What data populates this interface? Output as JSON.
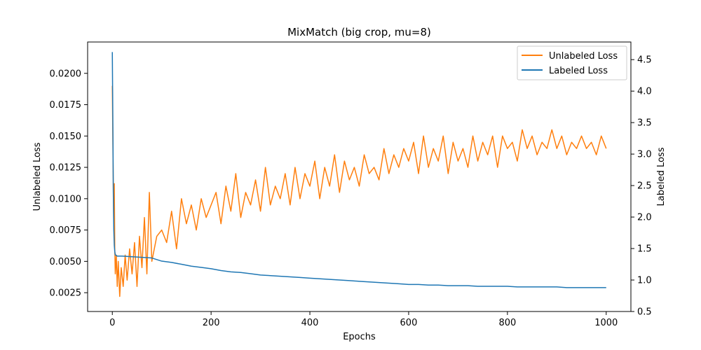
{
  "chart_data": {
    "type": "line",
    "title": "MixMatch (big crop, mu=8)",
    "xlabel": "Epochs",
    "ylabel_left": "Unlabeled Loss",
    "ylabel_right": "Labeled Loss",
    "xlim": [
      -50,
      1050
    ],
    "ylim_left": [
      0.001,
      0.0225
    ],
    "ylim_right": [
      0.5,
      4.78
    ],
    "xticks": [
      0,
      200,
      400,
      600,
      800,
      1000
    ],
    "yticks_left": [
      0.0025,
      0.005,
      0.0075,
      0.01,
      0.0125,
      0.015,
      0.0175,
      0.02
    ],
    "ytick_labels_left": [
      "0.0025",
      "0.0050",
      "0.0075",
      "0.0100",
      "0.0125",
      "0.0150",
      "0.0175",
      "0.0200"
    ],
    "yticks_right": [
      0.5,
      1.0,
      1.5,
      2.0,
      2.5,
      3.0,
      3.5,
      4.0,
      4.5
    ],
    "ytick_labels_right": [
      "0.5",
      "1.0",
      "1.5",
      "2.0",
      "2.5",
      "3.0",
      "3.5",
      "4.0",
      "4.5"
    ],
    "grid": false,
    "legend_position": "top-right",
    "series": [
      {
        "name": "Unlabeled Loss",
        "axis": "left",
        "color": "#ff7f0e",
        "points": [
          [
            0,
            0.019
          ],
          [
            1,
            0.015
          ],
          [
            2,
            0.011
          ],
          [
            3,
            0.008
          ],
          [
            4,
            0.0112
          ],
          [
            5,
            0.006
          ],
          [
            6,
            0.004
          ],
          [
            8,
            0.0055
          ],
          [
            10,
            0.003
          ],
          [
            12,
            0.005
          ],
          [
            15,
            0.0022
          ],
          [
            18,
            0.0045
          ],
          [
            22,
            0.003
          ],
          [
            26,
            0.0055
          ],
          [
            30,
            0.0035
          ],
          [
            35,
            0.006
          ],
          [
            40,
            0.004
          ],
          [
            45,
            0.0065
          ],
          [
            50,
            0.003
          ],
          [
            55,
            0.007
          ],
          [
            60,
            0.0045
          ],
          [
            65,
            0.0085
          ],
          [
            70,
            0.004
          ],
          [
            75,
            0.0105
          ],
          [
            80,
            0.005
          ],
          [
            90,
            0.007
          ],
          [
            100,
            0.0075
          ],
          [
            110,
            0.0065
          ],
          [
            120,
            0.009
          ],
          [
            130,
            0.006
          ],
          [
            140,
            0.01
          ],
          [
            150,
            0.008
          ],
          [
            160,
            0.0095
          ],
          [
            170,
            0.0075
          ],
          [
            180,
            0.01
          ],
          [
            190,
            0.0085
          ],
          [
            200,
            0.0095
          ],
          [
            210,
            0.0105
          ],
          [
            220,
            0.008
          ],
          [
            230,
            0.011
          ],
          [
            240,
            0.009
          ],
          [
            250,
            0.012
          ],
          [
            260,
            0.0085
          ],
          [
            270,
            0.0105
          ],
          [
            280,
            0.0095
          ],
          [
            290,
            0.0115
          ],
          [
            300,
            0.009
          ],
          [
            310,
            0.0125
          ],
          [
            320,
            0.0095
          ],
          [
            330,
            0.011
          ],
          [
            340,
            0.01
          ],
          [
            350,
            0.012
          ],
          [
            360,
            0.0095
          ],
          [
            370,
            0.0125
          ],
          [
            380,
            0.01
          ],
          [
            390,
            0.012
          ],
          [
            400,
            0.011
          ],
          [
            410,
            0.013
          ],
          [
            420,
            0.01
          ],
          [
            430,
            0.0125
          ],
          [
            440,
            0.011
          ],
          [
            450,
            0.0135
          ],
          [
            460,
            0.0105
          ],
          [
            470,
            0.013
          ],
          [
            480,
            0.0115
          ],
          [
            490,
            0.0125
          ],
          [
            500,
            0.011
          ],
          [
            510,
            0.0135
          ],
          [
            520,
            0.012
          ],
          [
            530,
            0.0125
          ],
          [
            540,
            0.0115
          ],
          [
            550,
            0.014
          ],
          [
            560,
            0.012
          ],
          [
            570,
            0.0135
          ],
          [
            580,
            0.0125
          ],
          [
            590,
            0.014
          ],
          [
            600,
            0.013
          ],
          [
            610,
            0.0145
          ],
          [
            620,
            0.012
          ],
          [
            630,
            0.015
          ],
          [
            640,
            0.0125
          ],
          [
            650,
            0.014
          ],
          [
            660,
            0.013
          ],
          [
            670,
            0.015
          ],
          [
            680,
            0.012
          ],
          [
            690,
            0.0145
          ],
          [
            700,
            0.013
          ],
          [
            710,
            0.014
          ],
          [
            720,
            0.0125
          ],
          [
            730,
            0.015
          ],
          [
            740,
            0.013
          ],
          [
            750,
            0.0145
          ],
          [
            760,
            0.0135
          ],
          [
            770,
            0.015
          ],
          [
            780,
            0.0125
          ],
          [
            790,
            0.015
          ],
          [
            800,
            0.014
          ],
          [
            810,
            0.0145
          ],
          [
            820,
            0.013
          ],
          [
            830,
            0.0155
          ],
          [
            840,
            0.014
          ],
          [
            850,
            0.015
          ],
          [
            860,
            0.0135
          ],
          [
            870,
            0.0145
          ],
          [
            880,
            0.014
          ],
          [
            890,
            0.0155
          ],
          [
            900,
            0.014
          ],
          [
            910,
            0.015
          ],
          [
            920,
            0.0135
          ],
          [
            930,
            0.0145
          ],
          [
            940,
            0.014
          ],
          [
            950,
            0.015
          ],
          [
            960,
            0.014
          ],
          [
            970,
            0.0145
          ],
          [
            980,
            0.0135
          ],
          [
            990,
            0.015
          ],
          [
            1000,
            0.014
          ]
        ]
      },
      {
        "name": "Labeled Loss",
        "axis": "right",
        "color": "#1f77b4",
        "points": [
          [
            0,
            4.62
          ],
          [
            1,
            3.6
          ],
          [
            2,
            2.4
          ],
          [
            3,
            1.8
          ],
          [
            4,
            1.55
          ],
          [
            5,
            1.45
          ],
          [
            6,
            1.4
          ],
          [
            10,
            1.38
          ],
          [
            20,
            1.38
          ],
          [
            40,
            1.37
          ],
          [
            60,
            1.36
          ],
          [
            80,
            1.35
          ],
          [
            100,
            1.3
          ],
          [
            120,
            1.28
          ],
          [
            140,
            1.25
          ],
          [
            160,
            1.22
          ],
          [
            180,
            1.2
          ],
          [
            200,
            1.18
          ],
          [
            220,
            1.15
          ],
          [
            240,
            1.13
          ],
          [
            260,
            1.12
          ],
          [
            280,
            1.1
          ],
          [
            300,
            1.08
          ],
          [
            320,
            1.07
          ],
          [
            340,
            1.06
          ],
          [
            360,
            1.05
          ],
          [
            380,
            1.04
          ],
          [
            400,
            1.03
          ],
          [
            420,
            1.02
          ],
          [
            440,
            1.01
          ],
          [
            460,
            1.0
          ],
          [
            480,
            0.99
          ],
          [
            500,
            0.98
          ],
          [
            520,
            0.97
          ],
          [
            540,
            0.96
          ],
          [
            560,
            0.95
          ],
          [
            580,
            0.94
          ],
          [
            600,
            0.93
          ],
          [
            620,
            0.93
          ],
          [
            640,
            0.92
          ],
          [
            660,
            0.92
          ],
          [
            680,
            0.91
          ],
          [
            700,
            0.91
          ],
          [
            720,
            0.91
          ],
          [
            740,
            0.9
          ],
          [
            760,
            0.9
          ],
          [
            780,
            0.9
          ],
          [
            800,
            0.9
          ],
          [
            820,
            0.89
          ],
          [
            840,
            0.89
          ],
          [
            860,
            0.89
          ],
          [
            880,
            0.89
          ],
          [
            900,
            0.89
          ],
          [
            920,
            0.88
          ],
          [
            940,
            0.88
          ],
          [
            960,
            0.88
          ],
          [
            980,
            0.88
          ],
          [
            1000,
            0.88
          ]
        ]
      }
    ]
  }
}
